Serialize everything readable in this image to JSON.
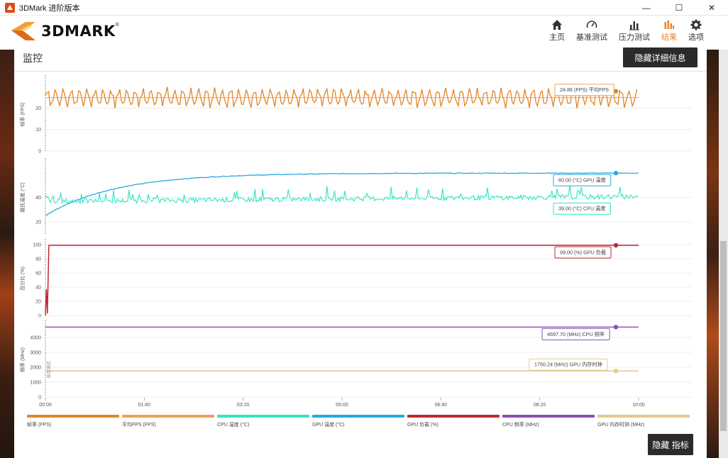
{
  "window": {
    "title": "3DMark 进阶版本",
    "controls": [
      "—",
      "☐",
      "✕"
    ]
  },
  "brand": {
    "name": "3DMARK",
    "reg": "®"
  },
  "nav": [
    {
      "label": "主页",
      "icon": "home-icon",
      "active": false
    },
    {
      "label": "基准测试",
      "icon": "gauge-icon",
      "active": false
    },
    {
      "label": "压力测试",
      "icon": "bar-chart-icon",
      "active": false
    },
    {
      "label": "结果",
      "icon": "results-icon",
      "active": true
    },
    {
      "label": "选项",
      "icon": "gear-icon",
      "active": false
    }
  ],
  "panel": {
    "title": "监控",
    "hide_details_button": "隐藏详细信息",
    "hide_metrics_button": "隐藏 指标"
  },
  "colors": {
    "fps": "#e0852a",
    "avg_fps": "#eba15c",
    "cpu_temp": "#2ee6c0",
    "gpu_temp": "#26a9e0",
    "gpu_load": "#c0272d",
    "cpu_clock": "#8a4fb8",
    "gpu_mem_clock": "#e8c98a",
    "accent": "#e8842a"
  },
  "chart_data": {
    "type": "line",
    "x_axis": {
      "ticks": [
        "00:00",
        "01:40",
        "03:20",
        "05:00",
        "06:40",
        "08:20",
        "10:00"
      ],
      "range_seconds": [
        0,
        600
      ]
    },
    "panels": [
      {
        "ylabel": "帧率 (FPS)",
        "yticks": [
          "0",
          "10",
          "20"
        ],
        "ylim": [
          0,
          34
        ],
        "series": [
          {
            "name": "帧率 (FPS)",
            "color_key": "fps",
            "approx_values_range": [
              21,
              29
            ],
            "oscillating": true
          },
          {
            "name": "平均FPS (FPS)",
            "color_key": "avg_fps",
            "value": 24.86
          }
        ],
        "callouts": [
          {
            "text": "24.86 (FPS) 平均FPS",
            "color_key": "avg_fps"
          }
        ]
      },
      {
        "ylabel": "摄氏温度 (°C)",
        "yticks": [
          "20",
          "40"
        ],
        "ylim": [
          10,
          70
        ],
        "series": [
          {
            "name": "GPU 温度 (°C)",
            "color_key": "gpu_temp",
            "start": 25,
            "end": 60,
            "plateau_time_s": 210
          },
          {
            "name": "CPU 温度 (°C)",
            "color_key": "cpu_temp",
            "approx_values_range": [
              33,
              48
            ],
            "value": 39.0
          }
        ],
        "callouts": [
          {
            "text": "60.00 (°C) GPU 温度",
            "color_key": "gpu_temp"
          },
          {
            "text": "39.00 (°C) CPU 温度",
            "color_key": "cpu_temp"
          }
        ]
      },
      {
        "ylabel": "百分比 (%)",
        "yticks": [
          "0",
          "20",
          "40",
          "60",
          "80",
          "100"
        ],
        "ylim": [
          0,
          104
        ],
        "series": [
          {
            "name": "GPU 负载 (%)",
            "color_key": "gpu_load",
            "start_values": [
              0,
              37,
              3
            ],
            "value": 99.0
          }
        ],
        "callouts": [
          {
            "text": "99.00 (%) GPU 负载",
            "color_key": "gpu_load"
          }
        ]
      },
      {
        "ylabel": "频率 (MHz)",
        "yticks": [
          "0",
          "1000",
          "2000",
          "3000",
          "4000"
        ],
        "ylim": [
          0,
          5000
        ],
        "series": [
          {
            "name": "CPU 频率 (MHz)",
            "color_key": "cpu_clock",
            "value": 4697.7
          },
          {
            "name": "GPU 内存时钟 (MHz)",
            "color_key": "gpu_mem_clock",
            "value": 1750.24
          }
        ],
        "annotation": "显示测试",
        "callouts": [
          {
            "text": "4697.70 (MHz) CPU 频率",
            "color_key": "cpu_clock"
          },
          {
            "text": "1750.24 (MHz) GPU 内存时钟",
            "color_key": "gpu_mem_clock"
          }
        ]
      }
    ],
    "legend": [
      {
        "label": "帧率 (FPS)",
        "color_key": "fps"
      },
      {
        "label": "平均FPS (FPS)",
        "color_key": "avg_fps"
      },
      {
        "label": "CPU 温度 (°C)",
        "color_key": "cpu_temp"
      },
      {
        "label": "GPU 温度 (°C)",
        "color_key": "gpu_temp"
      },
      {
        "label": "GPU 负载 (%)",
        "color_key": "gpu_load"
      },
      {
        "label": "CPU 频率 (MHz)",
        "color_key": "cpu_clock"
      },
      {
        "label": "GPU 内存时钟 (MHz)",
        "color_key": "gpu_mem_clock"
      }
    ]
  }
}
